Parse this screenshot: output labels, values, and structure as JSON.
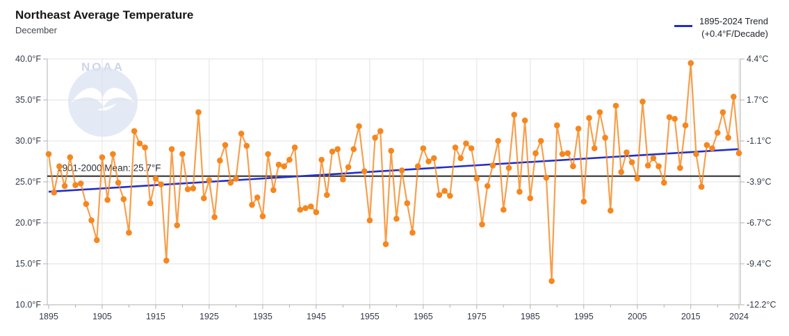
{
  "header": {
    "title": "Northeast Average Temperature",
    "subtitle": "December"
  },
  "legend": {
    "line1": "1895-2024 Trend",
    "line2": "(+0.4°F/Decade)"
  },
  "watermark": {
    "text": "NOAA",
    "logo_icon": "noaa-seagull-circle-icon"
  },
  "colors": {
    "series_orange": "#f5871f",
    "trend_blue": "#1e2ecc",
    "mean_gray": "#4f4f4f",
    "grid": "#e2e2e2",
    "axis": "#b0b0b0",
    "tick_text": "#333a47",
    "logo_fill": "#d9e2f2"
  },
  "chart_data": {
    "type": "line",
    "title": "Northeast Average Temperature",
    "subtitle": "December",
    "legend_position": "top-right",
    "grid": true,
    "x_range": [
      1895,
      2024
    ],
    "x": [
      1895,
      1896,
      1897,
      1898,
      1899,
      1900,
      1901,
      1902,
      1903,
      1904,
      1905,
      1906,
      1907,
      1908,
      1909,
      1910,
      1911,
      1912,
      1913,
      1914,
      1915,
      1916,
      1917,
      1918,
      1919,
      1920,
      1921,
      1922,
      1923,
      1924,
      1925,
      1926,
      1927,
      1928,
      1929,
      1930,
      1931,
      1932,
      1933,
      1934,
      1935,
      1936,
      1937,
      1938,
      1939,
      1940,
      1941,
      1942,
      1943,
      1944,
      1945,
      1946,
      1947,
      1948,
      1949,
      1950,
      1951,
      1952,
      1953,
      1954,
      1955,
      1956,
      1957,
      1958,
      1959,
      1960,
      1961,
      1962,
      1963,
      1964,
      1965,
      1966,
      1967,
      1968,
      1969,
      1970,
      1971,
      1972,
      1973,
      1974,
      1975,
      1976,
      1977,
      1978,
      1979,
      1980,
      1981,
      1982,
      1983,
      1984,
      1985,
      1986,
      1987,
      1988,
      1989,
      1990,
      1991,
      1992,
      1993,
      1994,
      1995,
      1996,
      1997,
      1998,
      1999,
      2000,
      2001,
      2002,
      2003,
      2004,
      2005,
      2006,
      2007,
      2008,
      2009,
      2010,
      2011,
      2012,
      2013,
      2014,
      2015,
      2016,
      2017,
      2018,
      2019,
      2020,
      2021,
      2022,
      2023,
      2024
    ],
    "series": [
      {
        "name": "December average temperature (°F)",
        "values": [
          28.4,
          23.7,
          26.9,
          24.5,
          28.0,
          24.6,
          24.8,
          22.3,
          20.3,
          17.9,
          28.0,
          22.8,
          28.4,
          24.9,
          22.9,
          18.8,
          31.2,
          29.7,
          29.2,
          22.4,
          25.4,
          24.7,
          15.4,
          29.0,
          19.7,
          28.4,
          24.1,
          24.2,
          33.5,
          23.0,
          25.2,
          20.7,
          27.6,
          29.5,
          24.9,
          25.4,
          30.9,
          29.4,
          22.2,
          23.1,
          20.8,
          28.4,
          24.0,
          27.1,
          26.9,
          27.7,
          29.2,
          21.6,
          21.8,
          22.0,
          21.3,
          27.7,
          23.4,
          28.7,
          29.0,
          25.3,
          26.8,
          29.0,
          31.8,
          26.3,
          20.3,
          30.4,
          31.2,
          17.4,
          28.8,
          20.5,
          26.4,
          22.4,
          18.8,
          26.9,
          29.1,
          27.5,
          27.9,
          23.4,
          23.9,
          23.3,
          29.2,
          27.9,
          29.7,
          29.1,
          25.4,
          19.8,
          24.5,
          27.0,
          30.0,
          21.6,
          26.7,
          33.2,
          23.8,
          32.5,
          23.0,
          28.5,
          30.0,
          25.5,
          12.9,
          31.9,
          28.4,
          28.5,
          26.9,
          31.5,
          22.6,
          32.8,
          29.1,
          33.5,
          30.4,
          21.5,
          34.3,
          26.2,
          28.6,
          27.4,
          25.4,
          34.8,
          27.0,
          27.9,
          26.9,
          24.9,
          32.9,
          32.7,
          26.7,
          31.9,
          39.5,
          28.4,
          24.4,
          29.5,
          29.1,
          31.0,
          33.5,
          30.4,
          35.4,
          28.5
        ]
      }
    ],
    "trend": {
      "label": "1895-2024 Trend",
      "sublabel": "(+0.4°F/Decade)",
      "start_year": 1895,
      "end_year": 2024,
      "start_f": 23.8,
      "end_f": 29.0
    },
    "mean_line": {
      "label": "1901-2000 Mean: 25.7°F",
      "value_f": 25.7
    },
    "ylim_f": [
      10,
      40
    ],
    "y_ticks_f": [
      40,
      35,
      30,
      25,
      20,
      15,
      10
    ],
    "y_tick_labels_left": [
      "40.0°F",
      "35.0°F",
      "30.0°F",
      "25.0°F",
      "20.0°F",
      "15.0°F",
      "10.0°F"
    ],
    "y_tick_labels_right": [
      "4.4°C",
      "1.7°C",
      "-1.1°C",
      "-3.9°C",
      "-6.7°C",
      "-9.4°C",
      "-12.2°C"
    ],
    "x_tick_years_labeled": [
      1895,
      1905,
      1915,
      1925,
      1935,
      1945,
      1955,
      1965,
      1975,
      1985,
      1995,
      2005,
      2015,
      2024
    ],
    "x_tick_minor_step": 5
  }
}
